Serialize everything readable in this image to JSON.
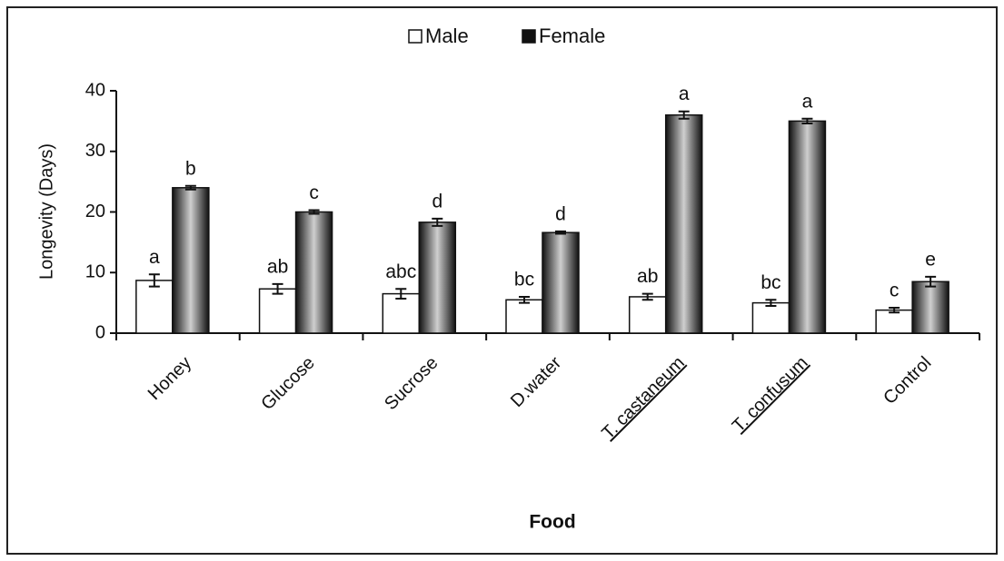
{
  "chart_data": {
    "type": "bar",
    "x_label": "Food",
    "y_label": "Longevity (Days)",
    "categories": [
      "Honey",
      "Glucose",
      "Sucrose",
      "D.water",
      "T. castaneum",
      "T. confusum",
      "Control"
    ],
    "underline_categories": [
      false,
      false,
      false,
      false,
      true,
      true,
      false
    ],
    "series": [
      {
        "name": "Male",
        "color": "#ffffff",
        "values": [
          8.7,
          7.3,
          6.5,
          5.5,
          6.0,
          5.0,
          3.8
        ],
        "errors": [
          1.0,
          0.8,
          0.8,
          0.5,
          0.5,
          0.5,
          0.4
        ],
        "letters": [
          "a",
          "ab",
          "abc",
          "bc",
          "ab",
          "bc",
          "c"
        ]
      },
      {
        "name": "Female",
        "color": "#222222",
        "values": [
          24.0,
          20.0,
          18.3,
          16.6,
          36.0,
          35.0,
          8.5
        ],
        "errors": [
          0.3,
          0.3,
          0.6,
          0.2,
          0.6,
          0.4,
          0.8
        ],
        "letters": [
          "b",
          "c",
          "d",
          "d",
          "a",
          "a",
          "e"
        ]
      }
    ],
    "ylim": [
      0,
      40
    ],
    "yticks": [
      0,
      10,
      20,
      30,
      40
    ],
    "grid": false,
    "legend": "top"
  }
}
